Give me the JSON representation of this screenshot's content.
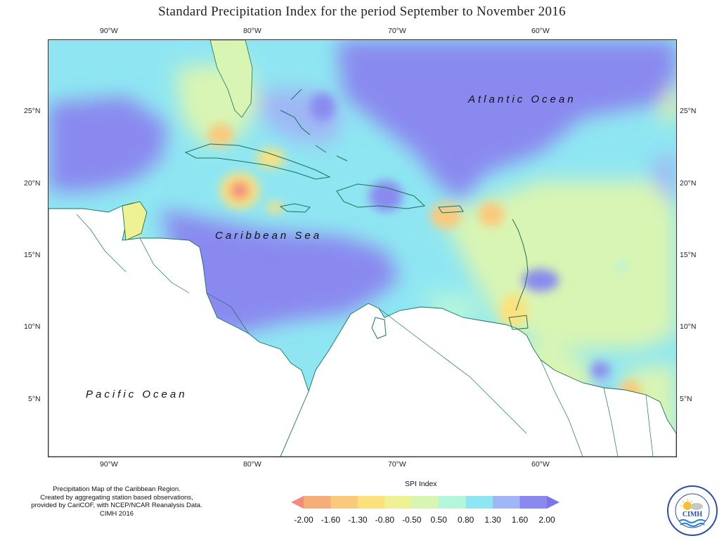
{
  "title": "Standard Precipitation Index for the period September to November 2016",
  "axes": {
    "top": [
      "90°W",
      "80°W",
      "70°W",
      "60°W"
    ],
    "bottom": [
      "90°W",
      "80°W",
      "70°W",
      "60°W"
    ],
    "left": [
      "25°N",
      "20°N",
      "15°N",
      "10°N",
      "5°N"
    ],
    "right": [
      "25°N",
      "20°N",
      "15°N",
      "10°N",
      "5°N"
    ]
  },
  "map": {
    "labels": {
      "atlantic": "Atlantic Ocean",
      "caribbean": "Caribbean Sea",
      "pacific": "Pacific Ocean"
    },
    "lon_range": [
      -94,
      -50
    ],
    "lat_range": [
      1,
      30
    ]
  },
  "credit": [
    "Precipitation Map of the Caribbean Region.",
    "Created by aggregating station based observations,",
    "provided by CariCOF, with NCEP/NCAR Reanalysis Data.",
    "CIMH 2016"
  ],
  "legend": {
    "title": "SPI Index",
    "ticks": [
      "-2.00",
      "-1.60",
      "-1.30",
      "-0.80",
      "-0.50",
      "0.50",
      "0.80",
      "1.30",
      "1.60",
      "2.00"
    ],
    "colors": [
      "#f28a7e",
      "#f7ad7a",
      "#fbc97c",
      "#fbe27c",
      "#eef294",
      "#d9f5b3",
      "#b4f5dc",
      "#8fe6f2",
      "#9fb7f5",
      "#8a89ef",
      "#7b76e8"
    ]
  },
  "logo": {
    "text": "CIMH",
    "ring_text": "Caribbean Institute for Meteorology and Hydrology"
  }
}
